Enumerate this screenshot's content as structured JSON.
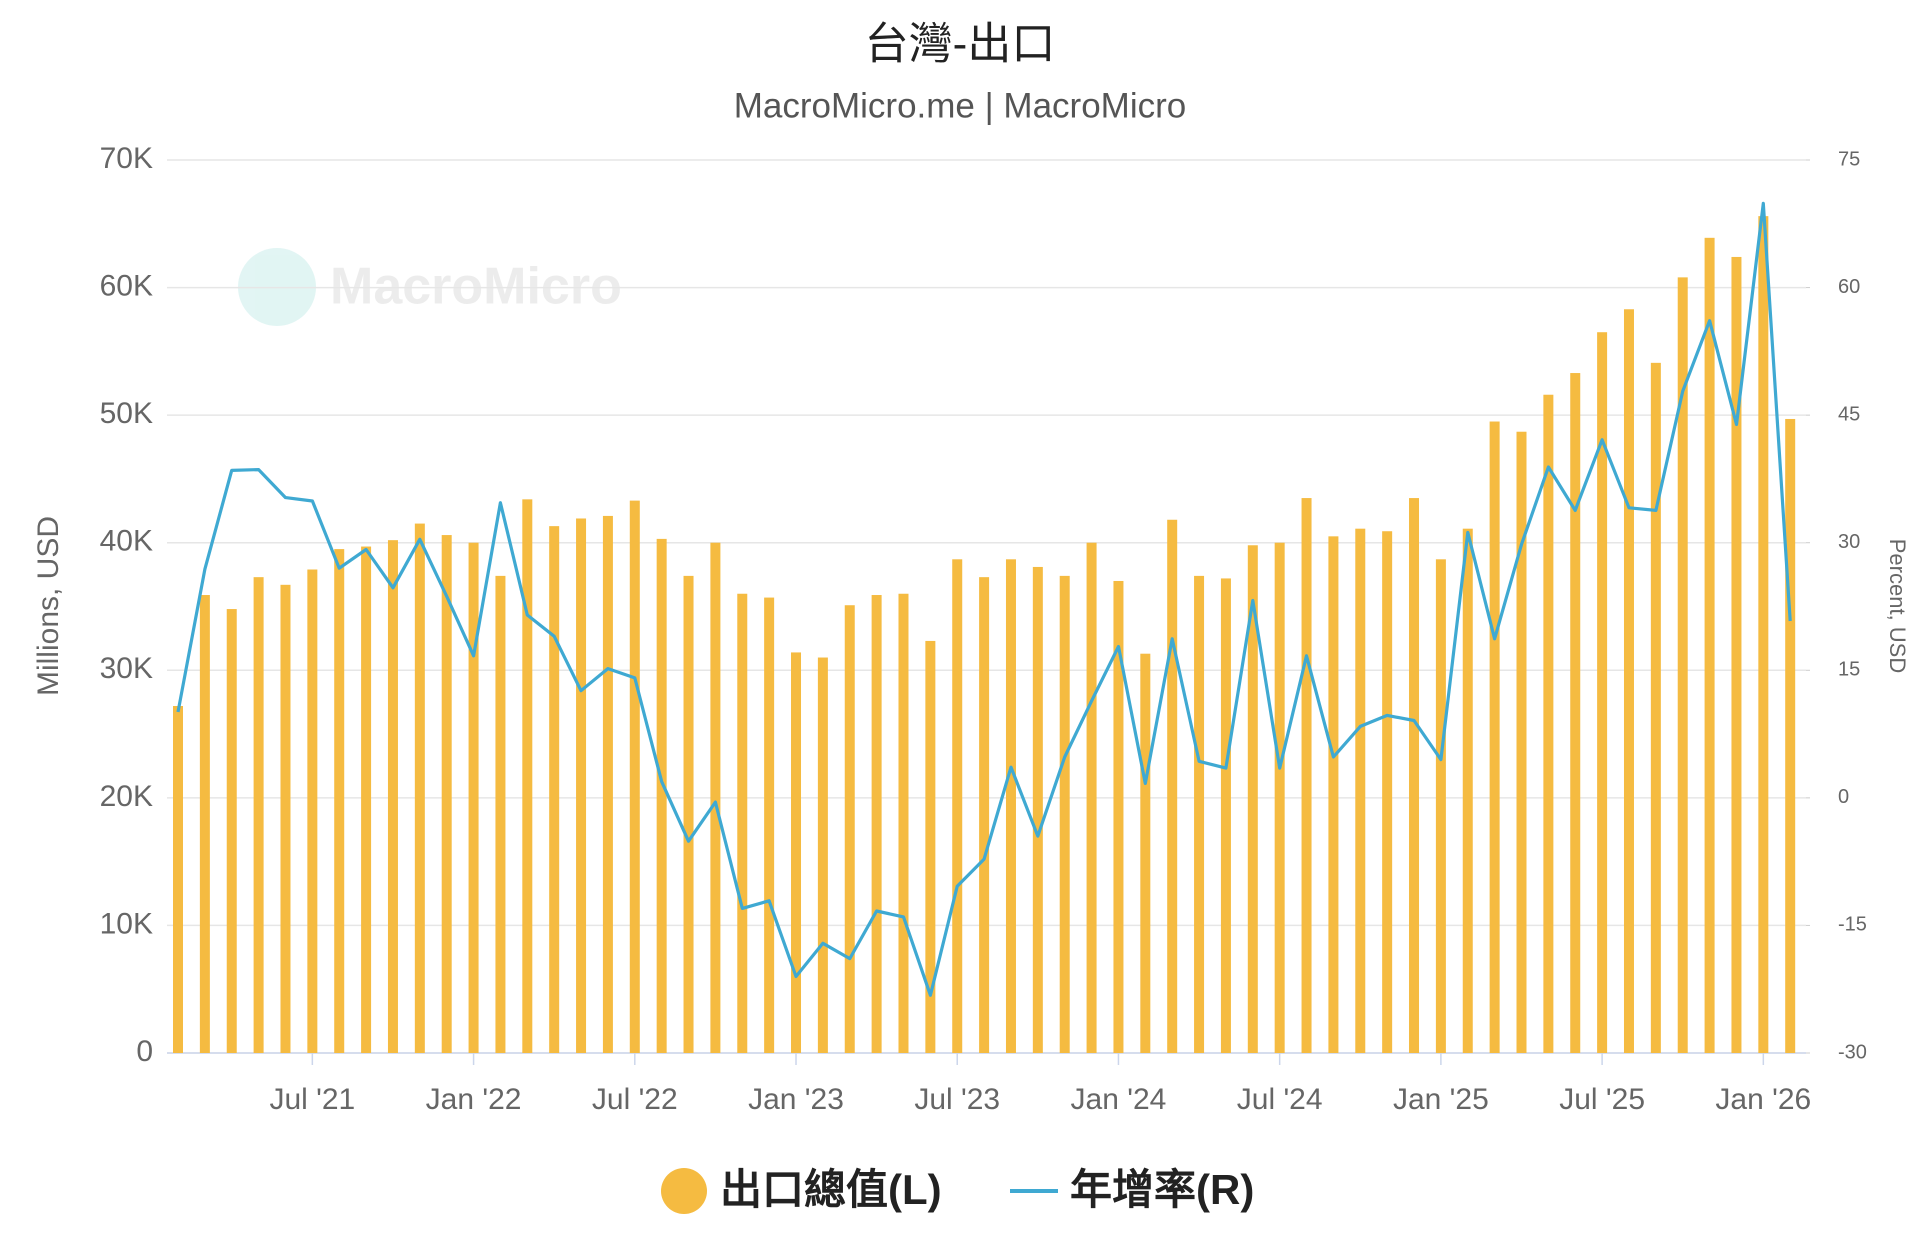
{
  "chart_data": {
    "type": "bar-line",
    "title": "台灣-出口",
    "subtitle": "MacroMicro.me | MacroMicro",
    "watermark": "MacroMicro",
    "y_label": "Millions, USD",
    "y2_label": "Percent, USD",
    "categories": [
      null,
      null,
      null,
      null,
      null,
      "Jul '21",
      null,
      null,
      null,
      null,
      null,
      "Jan '22",
      null,
      null,
      null,
      null,
      null,
      "Jul '22",
      null,
      null,
      null,
      null,
      null,
      "Jan '23",
      null,
      null,
      null,
      null,
      null,
      "Jul '23",
      null,
      null,
      null,
      null,
      null,
      "Jan '24",
      null,
      null,
      null,
      null,
      null,
      "Jul '24",
      null,
      null,
      null,
      null,
      null,
      "Jan '25",
      null,
      null,
      null,
      null,
      null,
      "Jul '25",
      null,
      null,
      null,
      null,
      null,
      "Jan '26",
      null
    ],
    "series": [
      {
        "name": "出口總值(L)",
        "type": "bar",
        "color": "#f5bb41",
        "values": [
          27200,
          35900,
          34800,
          37300,
          36700,
          37900,
          39500,
          39700,
          40200,
          41500,
          40600,
          40000,
          37400,
          43400,
          41300,
          41900,
          42100,
          43300,
          40300,
          37400,
          40000,
          36000,
          35700,
          31400,
          31000,
          35100,
          35900,
          36000,
          32300,
          38700,
          37300,
          38700,
          38100,
          37400,
          40000,
          37000,
          31300,
          41800,
          37400,
          37200,
          39800,
          40000,
          43500,
          40500,
          41100,
          40900,
          43500,
          38700,
          41100,
          49500,
          48700,
          51600,
          53300,
          56500,
          58300,
          54100,
          60800,
          63900,
          62400,
          65600,
          49700
        ]
      },
      {
        "name": "年增率(R)",
        "type": "line",
        "axis": "y2",
        "color": "#3fa9d2",
        "values": [
          10.1,
          26.9,
          38.5,
          38.6,
          35.3,
          34.9,
          27.0,
          29.2,
          24.7,
          30.4,
          23.7,
          16.7,
          34.7,
          21.5,
          19.0,
          12.6,
          15.2,
          14.1,
          1.9,
          -5.1,
          -0.5,
          -13.0,
          -12.1,
          -21.0,
          -17.1,
          -18.9,
          -13.3,
          -14.0,
          -23.2,
          -10.4,
          -7.2,
          3.6,
          -4.5,
          4.8,
          11.4,
          17.8,
          1.7,
          18.7,
          4.3,
          3.5,
          23.2,
          3.5,
          16.7,
          4.8,
          8.4,
          9.7,
          9.1,
          4.5,
          31.2,
          18.7,
          29.8,
          38.9,
          33.8,
          42.1,
          34.1,
          33.8,
          47.8,
          56.1,
          43.9,
          69.9,
          20.8
        ]
      }
    ],
    "ylim": [
      0,
      70000
    ],
    "yticks": [
      0,
      {
        "value": 10000,
        "label": "10K"
      },
      {
        "value": 20000,
        "label": "20K"
      },
      {
        "value": 30000,
        "label": "30K"
      },
      {
        "value": 40000,
        "label": "40K"
      },
      {
        "value": 50000,
        "label": "50K"
      },
      {
        "value": 60000,
        "label": "60K"
      },
      {
        "value": 70000,
        "label": "70K"
      }
    ],
    "y2lim": [
      -30,
      75
    ],
    "y2ticks": [
      -30,
      -15,
      0,
      15,
      30,
      45,
      60,
      75
    ],
    "grid": true
  }
}
